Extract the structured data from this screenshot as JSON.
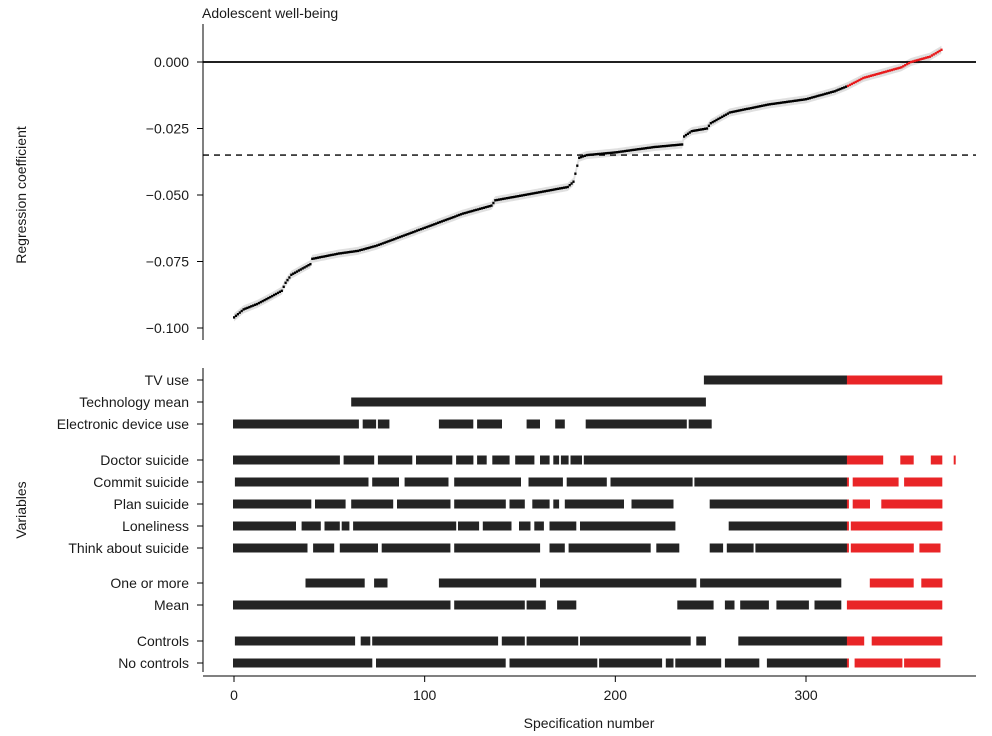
{
  "chart_data": {
    "type": "scatter",
    "title": "Adolescent well-being",
    "xlabel": "Specification number",
    "ylabel": "Regression coefficient",
    "ylabel_variables": "Variables",
    "xlim": [
      -16,
      390
    ],
    "ylim": [
      -0.105,
      0.013
    ],
    "xticks": [
      0,
      100,
      200,
      300
    ],
    "xtick_labels": [
      "0",
      "100",
      "200",
      "300"
    ],
    "yticks": [
      0.0,
      -0.025,
      -0.05,
      -0.075,
      -0.1
    ],
    "ytick_labels": [
      "0.000",
      "−0.025",
      "−0.050",
      "−0.075",
      "−0.100"
    ],
    "n_specifications": 372,
    "zero_line": 0.0,
    "dashed_line": -0.035,
    "significance_switch_at": 322,
    "colors": {
      "significant": "#000000",
      "not_significant": "#e8191b",
      "ci_band": "#cccccc",
      "axis": "#000000"
    },
    "curve_anchors": {
      "x": [
        0,
        5,
        12,
        20,
        25,
        27,
        30,
        40,
        41,
        55,
        65,
        75,
        90,
        105,
        120,
        135,
        137,
        160,
        175,
        178,
        179,
        181,
        185,
        200,
        220,
        235,
        236,
        240,
        248,
        250,
        260,
        280,
        300,
        310,
        315,
        322,
        330,
        340,
        350,
        355,
        365,
        372
      ],
      "y": [
        -0.096,
        -0.093,
        -0.091,
        -0.088,
        -0.086,
        -0.083,
        -0.08,
        -0.076,
        -0.074,
        -0.072,
        -0.071,
        -0.069,
        -0.065,
        -0.061,
        -0.057,
        -0.054,
        -0.052,
        -0.049,
        -0.047,
        -0.045,
        -0.042,
        -0.036,
        -0.035,
        -0.034,
        -0.032,
        -0.031,
        -0.028,
        -0.026,
        -0.025,
        -0.023,
        -0.019,
        -0.016,
        -0.014,
        -0.012,
        -0.011,
        -0.009,
        -0.006,
        -0.004,
        -0.002,
        0.0,
        0.002,
        0.005
      ]
    },
    "variable_groups": [
      {
        "labels": [
          "TV use",
          "Technology mean",
          "Electronic device use"
        ]
      },
      {
        "labels": [
          "Doctor suicide",
          "Commit suicide",
          "Plan suicide",
          "Loneliness",
          "Think about suicide"
        ]
      },
      {
        "labels": [
          "One or more",
          "Mean"
        ]
      },
      {
        "labels": [
          "Controls",
          "No controls"
        ]
      }
    ],
    "variable_rows": [
      {
        "label": "TV use",
        "segments": [
          [
            247,
            372
          ]
        ]
      },
      {
        "label": "Technology mean",
        "segments": [
          [
            62,
            247
          ]
        ]
      },
      {
        "label": "Electronic device use",
        "segments": [
          [
            0,
            65
          ],
          [
            68,
            74
          ],
          [
            76,
            81
          ],
          [
            108,
            125
          ],
          [
            128,
            140
          ],
          [
            154,
            160
          ],
          [
            169,
            173
          ],
          [
            185,
            237
          ],
          [
            239,
            250
          ]
        ]
      },
      {
        "label": "Doctor suicide",
        "segments": [
          [
            0,
            55
          ],
          [
            58,
            73
          ],
          [
            76,
            93
          ],
          [
            96,
            114
          ],
          [
            117,
            125
          ],
          [
            128,
            132
          ],
          [
            136,
            144
          ],
          [
            148,
            157
          ],
          [
            161,
            165
          ],
          [
            168,
            170
          ],
          [
            172,
            175
          ],
          [
            177,
            182
          ],
          [
            184,
            340
          ],
          [
            350,
            356
          ],
          [
            366,
            376
          ],
          [
            378,
            378
          ]
        ]
      },
      {
        "label": "Commit suicide",
        "segments": [
          [
            1,
            70
          ],
          [
            73,
            86
          ],
          [
            90,
            112
          ],
          [
            116,
            150
          ],
          [
            155,
            172
          ],
          [
            175,
            195
          ],
          [
            198,
            240
          ],
          [
            242,
            322
          ],
          [
            325,
            348
          ],
          [
            352,
            372
          ]
        ]
      },
      {
        "label": "Plan suicide",
        "segments": [
          [
            0,
            40
          ],
          [
            43,
            58
          ],
          [
            62,
            83
          ],
          [
            86,
            113
          ],
          [
            116,
            142
          ],
          [
            145,
            152
          ],
          [
            157,
            165
          ],
          [
            168,
            170
          ],
          [
            174,
            204
          ],
          [
            209,
            230
          ],
          [
            250,
            322
          ],
          [
            325,
            333
          ],
          [
            340,
            372
          ]
        ]
      },
      {
        "label": "Loneliness",
        "segments": [
          [
            0,
            32
          ],
          [
            36,
            45
          ],
          [
            48,
            55
          ],
          [
            57,
            60
          ],
          [
            63,
            116
          ],
          [
            118,
            128
          ],
          [
            131,
            145
          ],
          [
            150,
            155
          ],
          [
            158,
            162
          ],
          [
            166,
            179
          ],
          [
            182,
            231
          ],
          [
            260,
            322
          ],
          [
            324,
            372
          ]
        ]
      },
      {
        "label": "Think about suicide",
        "segments": [
          [
            0,
            38
          ],
          [
            42,
            52
          ],
          [
            56,
            75
          ],
          [
            78,
            113
          ],
          [
            116,
            160
          ],
          [
            166,
            173
          ],
          [
            176,
            218
          ],
          [
            222,
            233
          ],
          [
            250,
            256
          ],
          [
            259,
            272
          ],
          [
            274,
            322
          ],
          [
            324,
            356
          ],
          [
            360,
            370
          ]
        ]
      },
      {
        "label": "One or more",
        "segments": [
          [
            38,
            68
          ],
          [
            74,
            80
          ],
          [
            108,
            158
          ],
          [
            161,
            242
          ],
          [
            245,
            318
          ],
          [
            334,
            356
          ],
          [
            361,
            372
          ]
        ]
      },
      {
        "label": "Mean",
        "segments": [
          [
            0,
            113
          ],
          [
            116,
            152
          ],
          [
            154,
            163
          ],
          [
            170,
            179
          ],
          [
            233,
            251
          ],
          [
            258,
            262
          ],
          [
            266,
            280
          ],
          [
            285,
            301
          ],
          [
            305,
            318
          ],
          [
            322,
            372
          ]
        ]
      },
      {
        "label": "Controls",
        "segments": [
          [
            1,
            63
          ],
          [
            67,
            71
          ],
          [
            73,
            138
          ],
          [
            141,
            152
          ],
          [
            154,
            180
          ],
          [
            182,
            239
          ],
          [
            243,
            247
          ],
          [
            265,
            330
          ],
          [
            335,
            372
          ]
        ]
      },
      {
        "label": "No controls",
        "segments": [
          [
            0,
            72
          ],
          [
            75,
            142
          ],
          [
            145,
            190
          ],
          [
            192,
            224
          ],
          [
            227,
            230
          ],
          [
            232,
            255
          ],
          [
            258,
            275
          ],
          [
            280,
            322
          ],
          [
            326,
            350
          ],
          [
            352,
            370
          ]
        ]
      }
    ]
  }
}
